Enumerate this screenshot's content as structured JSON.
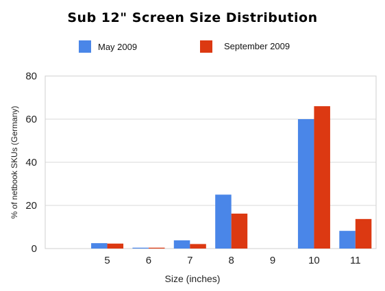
{
  "chart_data": {
    "type": "bar",
    "title": "Sub 12\" Screen Size Distribution",
    "xlabel": "Size (inches)",
    "ylabel": "% of netbook SKUs (Germany)",
    "categories": [
      "",
      "5",
      "6",
      "7",
      "8",
      "9",
      "10",
      "11"
    ],
    "series": [
      {
        "name": "May 2009",
        "color": "#4a86e8",
        "values": [
          0,
          2.5,
          0.4,
          3.8,
          25,
          0,
          60,
          8.2
        ]
      },
      {
        "name": "September 2009",
        "color": "#dc3912",
        "values": [
          0,
          2.3,
          0.4,
          2.1,
          16.2,
          0,
          66,
          13.7
        ]
      }
    ],
    "ylim": [
      0,
      80
    ],
    "yticks": [
      "0",
      "20",
      "40",
      "60",
      "80"
    ],
    "grid": true,
    "legend": "top"
  }
}
